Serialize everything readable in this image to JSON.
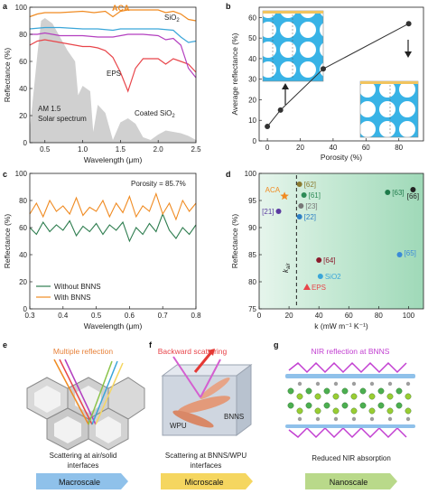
{
  "panel_labels": {
    "a": "a",
    "b": "b",
    "c": "c",
    "d": "d",
    "e": "e",
    "f": "f",
    "g": "g"
  },
  "panel_a": {
    "ylabel": "Reflectance (%)",
    "xlabel": "Wavelength (μm)",
    "xticks": [
      "0.5",
      "1.0",
      "1.5",
      "2.0",
      "2.5"
    ],
    "yticks": [
      "0",
      "20",
      "40",
      "60",
      "80",
      "100"
    ],
    "labels": {
      "aca": "ACA",
      "sio2": "SiO",
      "sio2_sub": "2",
      "eps": "EPS",
      "coated": "Coated SiO",
      "coated_sub": "2",
      "am1": "AM 1.5",
      "am2": "Solar spectrum"
    },
    "colors": {
      "aca": "#f08b22",
      "sio2": "#3aa6d9",
      "eps": "#e8454a",
      "coated": "#b33fbf",
      "solar": "#c8c8c8"
    }
  },
  "panel_b": {
    "ylabel": "Average reflectance (%)",
    "xlabel": "Porosity (%)",
    "xticks": [
      "0",
      "20",
      "40",
      "60",
      "80"
    ],
    "yticks": [
      "0",
      "10",
      "20",
      "30",
      "40",
      "50",
      "60"
    ]
  },
  "panel_c": {
    "ylabel": "Reflectance (%)",
    "xlabel": "Wavelength (μm)",
    "xticks": [
      "0.3",
      "0.4",
      "0.5",
      "0.6",
      "0.7",
      "0.8"
    ],
    "yticks": [
      "0",
      "20",
      "40",
      "60",
      "80",
      "100"
    ],
    "annotation": "Porosity = 85.7%",
    "legend": [
      "Without BNNS",
      "With BNNS"
    ],
    "colors": {
      "without": "#2e7d4f",
      "with": "#f08b22"
    }
  },
  "panel_d": {
    "ylabel": "Reflectance (%)",
    "xlabel": "k (mW m⁻¹ K⁻¹)",
    "xticks": [
      "0",
      "20",
      "40",
      "60",
      "80",
      "100"
    ],
    "yticks": [
      "75",
      "80",
      "85",
      "90",
      "95",
      "100"
    ],
    "kair": "k",
    "kair_sub": "air"
  },
  "chart_data": [
    {
      "type": "line",
      "panel": "a",
      "xlabel": "Wavelength (μm)",
      "ylabel": "Reflectance (%)",
      "xlim": [
        0.3,
        2.5
      ],
      "ylim": [
        0,
        100
      ],
      "series": [
        {
          "name": "ACA",
          "x": [
            0.3,
            0.4,
            0.5,
            0.7,
            1.0,
            1.15,
            1.3,
            1.4,
            1.5,
            1.6,
            1.8,
            2.0,
            2.1,
            2.2,
            2.3,
            2.4,
            2.5
          ],
          "values": [
            93,
            95,
            96,
            96,
            97,
            96,
            97,
            93,
            97,
            98,
            98,
            98,
            96,
            97,
            95,
            91,
            90
          ]
        },
        {
          "name": "SiO2",
          "x": [
            0.3,
            0.5,
            0.7,
            1.0,
            1.2,
            1.4,
            1.5,
            1.6,
            1.8,
            2.0,
            2.2,
            2.3,
            2.4,
            2.5
          ],
          "values": [
            84,
            85,
            85,
            84,
            84,
            83,
            84,
            84,
            84,
            84,
            83,
            78,
            74,
            75
          ]
        },
        {
          "name": "EPS",
          "x": [
            0.3,
            0.4,
            0.5,
            0.7,
            1.0,
            1.1,
            1.2,
            1.3,
            1.4,
            1.5,
            1.6,
            1.7,
            1.8,
            2.0,
            2.1,
            2.2,
            2.3,
            2.4,
            2.5
          ],
          "values": [
            72,
            75,
            76,
            74,
            71,
            71,
            70,
            68,
            63,
            52,
            38,
            55,
            62,
            62,
            58,
            62,
            60,
            58,
            52
          ]
        },
        {
          "name": "Coated SiO2",
          "x": [
            0.3,
            0.4,
            0.5,
            0.7,
            1.0,
            1.2,
            1.4,
            1.5,
            1.6,
            1.8,
            2.0,
            2.1,
            2.2,
            2.3,
            2.4,
            2.5
          ],
          "values": [
            80,
            80,
            81,
            79,
            79,
            78,
            78,
            79,
            80,
            80,
            79,
            76,
            77,
            72,
            55,
            48
          ]
        },
        {
          "name": "AM 1.5 Solar spectrum",
          "x": [
            0.3,
            0.4,
            0.45,
            0.5,
            0.6,
            0.7,
            0.8,
            0.9,
            0.94,
            1.0,
            1.1,
            1.14,
            1.2,
            1.3,
            1.4,
            1.5,
            1.6,
            1.7,
            1.8,
            1.9,
            2.0,
            2.1,
            2.2,
            2.3,
            2.4,
            2.5
          ],
          "values": [
            10,
            65,
            90,
            92,
            88,
            78,
            68,
            60,
            35,
            42,
            38,
            8,
            28,
            22,
            2,
            15,
            18,
            14,
            4,
            2,
            6,
            9,
            8,
            7,
            5,
            2
          ]
        }
      ]
    },
    {
      "type": "line",
      "panel": "b",
      "xlabel": "Porosity (%)",
      "ylabel": "Average reflectance (%)",
      "xlim": [
        -5,
        95
      ],
      "ylim": [
        0,
        65
      ],
      "series": [
        {
          "name": "",
          "x": [
            0,
            8,
            34,
            86
          ],
          "values": [
            7,
            15,
            35,
            57
          ]
        }
      ]
    },
    {
      "type": "line",
      "panel": "c",
      "xlabel": "Wavelength (μm)",
      "ylabel": "Reflectance (%)",
      "xlim": [
        0.3,
        0.8
      ],
      "ylim": [
        0,
        100
      ],
      "series": [
        {
          "name": "Without BNNS",
          "x": [
            0.3,
            0.32,
            0.34,
            0.36,
            0.38,
            0.4,
            0.42,
            0.44,
            0.46,
            0.48,
            0.5,
            0.52,
            0.54,
            0.56,
            0.58,
            0.6,
            0.62,
            0.64,
            0.66,
            0.68,
            0.7,
            0.72,
            0.74,
            0.76,
            0.78,
            0.8
          ],
          "values": [
            60,
            55,
            64,
            57,
            62,
            58,
            65,
            54,
            61,
            57,
            63,
            55,
            62,
            58,
            64,
            50,
            60,
            55,
            63,
            57,
            70,
            58,
            52,
            60,
            55,
            62
          ]
        },
        {
          "name": "With BNNS",
          "x": [
            0.3,
            0.32,
            0.34,
            0.36,
            0.38,
            0.4,
            0.42,
            0.44,
            0.46,
            0.48,
            0.5,
            0.52,
            0.54,
            0.56,
            0.58,
            0.6,
            0.62,
            0.64,
            0.66,
            0.68,
            0.7,
            0.72,
            0.74,
            0.76,
            0.78,
            0.8
          ],
          "values": [
            70,
            78,
            68,
            80,
            72,
            76,
            70,
            82,
            69,
            75,
            72,
            80,
            68,
            78,
            71,
            83,
            68,
            76,
            72,
            85,
            70,
            78,
            66,
            80,
            72,
            78
          ]
        }
      ]
    },
    {
      "type": "scatter",
      "panel": "d",
      "xlabel": "k (mW m⁻¹ K⁻¹)",
      "ylabel": "Reflectance (%)",
      "xlim": [
        0,
        110
      ],
      "ylim": [
        75,
        100
      ],
      "points": [
        {
          "label": "ACA",
          "x": 17,
          "y": 95.8,
          "color": "#f08b22",
          "marker": "star"
        },
        {
          "label": "[62]",
          "x": 27,
          "y": 98,
          "color": "#8a7a30",
          "marker": "circle"
        },
        {
          "label": "[61]",
          "x": 30,
          "y": 96,
          "color": "#2e8b57",
          "marker": "circle"
        },
        {
          "label": "[21]",
          "x": 13,
          "y": 93,
          "color": "#5a3aa0",
          "marker": "circle"
        },
        {
          "label": "[23]",
          "x": 28,
          "y": 94,
          "color": "#777777",
          "marker": "circle"
        },
        {
          "label": "[22]",
          "x": 27,
          "y": 92,
          "color": "#2d7fc4",
          "marker": "circle"
        },
        {
          "label": "[63]",
          "x": 86,
          "y": 96.5,
          "color": "#1e7a4a",
          "marker": "circle"
        },
        {
          "label": "[66]",
          "x": 103,
          "y": 97,
          "color": "#222222",
          "marker": "circle"
        },
        {
          "label": "[64]",
          "x": 40,
          "y": 84,
          "color": "#8b1a2b",
          "marker": "circle"
        },
        {
          "label": "[65]",
          "x": 94,
          "y": 85,
          "color": "#3a8ad8",
          "marker": "circle"
        },
        {
          "label": "SiO2",
          "x": 41,
          "y": 81,
          "color": "#3aa6d9",
          "marker": "circle"
        },
        {
          "label": "EPS",
          "x": 32,
          "y": 79,
          "color": "#e8454a",
          "marker": "triangle"
        }
      ],
      "vline_x": 25
    }
  ],
  "panel_e": {
    "title": "Multiple reflection",
    "caption1": "Scattering at air/solid",
    "caption2": "interfaces",
    "banner": "Macroscale",
    "banner_color": "#8fc1ea"
  },
  "panel_f": {
    "title": "Backward scattering",
    "wpu": "WPU",
    "bnns": "BNNS",
    "caption1": "Scattering at BNNS/WPU",
    "caption2": "interfaces",
    "banner": "Microscale",
    "banner_color": "#f5d660"
  },
  "panel_g": {
    "title": "NIR reflection at BNNS",
    "caption": "Reduced NIR absorption",
    "banner": "Nanoscale",
    "banner_color": "#b9d98a"
  }
}
